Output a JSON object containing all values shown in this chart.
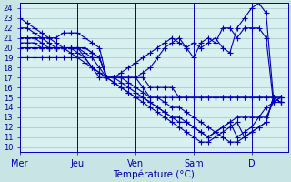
{
  "title": "Température (°C)",
  "bg_color": "#c8e4e4",
  "plot_bg_color": "#d8f0f0",
  "line_color": "#0000bb",
  "grid_color": "#99bbbb",
  "text_color": "#0000aa",
  "ylim": [
    9.5,
    24.5
  ],
  "xlim": [
    0,
    37
  ],
  "yticks": [
    10,
    11,
    12,
    13,
    14,
    15,
    16,
    17,
    18,
    19,
    20,
    21,
    22,
    23,
    24
  ],
  "day_labels": [
    "Mer",
    "Jeu",
    "Ven",
    "Sam",
    "D"
  ],
  "day_positions": [
    0,
    8,
    16,
    24,
    32
  ],
  "series": [
    [
      22,
      22,
      21.5,
      21,
      20.5,
      20,
      20,
      19.5,
      19,
      18.5,
      18,
      17.5,
      17,
      17,
      17,
      17,
      17,
      17.5,
      18,
      19,
      20,
      20.5,
      21,
      20,
      19,
      20.5,
      21,
      20.5,
      22,
      22,
      21,
      22,
      22,
      22,
      21,
      14.5,
      14.5
    ],
    [
      21,
      21,
      21,
      20.5,
      20,
      20,
      20,
      20,
      19.5,
      19,
      18,
      17.5,
      17,
      17,
      17,
      17,
      17,
      17,
      16,
      16,
      16,
      16,
      15,
      15,
      15,
      15,
      15,
      15,
      15,
      15,
      15,
      15,
      15,
      15,
      15,
      15,
      15
    ],
    [
      20.5,
      20.5,
      20.5,
      20,
      20,
      20,
      20,
      20,
      20,
      19.5,
      19,
      18,
      17,
      17,
      17,
      16.5,
      16,
      15.5,
      15,
      15,
      14.5,
      14,
      14,
      13.5,
      13,
      12.5,
      12,
      11.5,
      11,
      10.5,
      10.5,
      11,
      11.5,
      12,
      12.5,
      15,
      14.5
    ],
    [
      21,
      21,
      21,
      21,
      21,
      21,
      21.5,
      21.5,
      21.5,
      21,
      20.5,
      20,
      17,
      17,
      17,
      17,
      17,
      16,
      15,
      15,
      15,
      15,
      15,
      15,
      15,
      15,
      15,
      15,
      15,
      15,
      15,
      15,
      15,
      15,
      15,
      15,
      15
    ],
    [
      23,
      22.5,
      22,
      21.5,
      21,
      20.5,
      20,
      20,
      20,
      20,
      19.5,
      19,
      17,
      17,
      17.5,
      18,
      18.5,
      19,
      19.5,
      20,
      20.5,
      21,
      20.5,
      20,
      20.5,
      20,
      20.5,
      21,
      20,
      19.5,
      22,
      23,
      24,
      24.5,
      23.5,
      15,
      14.5
    ],
    [
      20,
      20,
      20,
      20,
      20,
      20,
      20,
      20,
      20,
      20,
      19.5,
      19,
      17,
      17,
      16.5,
      16,
      15.5,
      15,
      14.5,
      14,
      13.5,
      13,
      13,
      12.5,
      12,
      11.5,
      11,
      11.5,
      12,
      12.5,
      11,
      11.5,
      12,
      13,
      14,
      14.5,
      15
    ],
    [
      19,
      19,
      19,
      19,
      19,
      19,
      19,
      19,
      19,
      19,
      19,
      19,
      17,
      16.5,
      16,
      15.5,
      15,
      15,
      14.5,
      14,
      13.5,
      13,
      12.5,
      12.5,
      12,
      11.5,
      11,
      11.5,
      12,
      12.5,
      13,
      13,
      13,
      13,
      13,
      14.5,
      15
    ],
    [
      20,
      20,
      20,
      20,
      20,
      20,
      20,
      20,
      20,
      19,
      18,
      17,
      17,
      16.5,
      16,
      15.5,
      15,
      14.5,
      14,
      13.5,
      13,
      12.5,
      12,
      11.5,
      11,
      10.5,
      10.5,
      11,
      11.5,
      12,
      12.5,
      11,
      11.5,
      12,
      12.5,
      15,
      14.5
    ]
  ],
  "marker": "+",
  "marker_size": 4,
  "line_width": 0.8
}
